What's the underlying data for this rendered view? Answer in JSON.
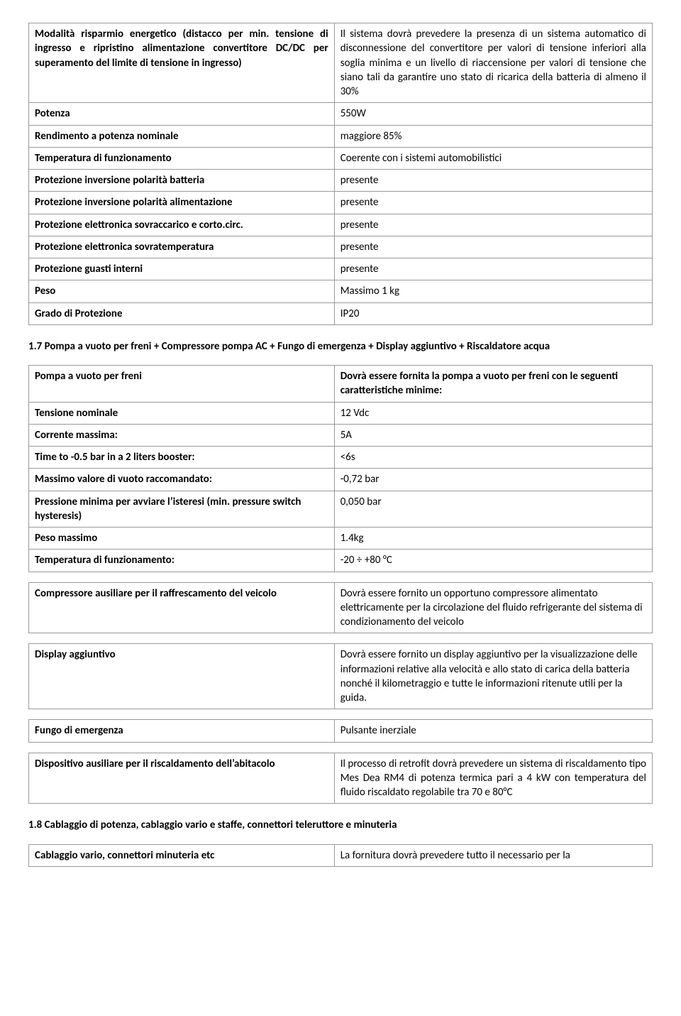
{
  "border_color": "#999999",
  "text_color": "#000000",
  "background_color": "#ffffff",
  "font_family": "Calibri",
  "font_size_pt": 11,
  "table1": {
    "rows": [
      {
        "l": "Modalità risparmio energetico (distacco per min. tensione di ingresso  e ripristino alimentazione convertitore DC/DC per superamento del limite di tensione in ingresso)",
        "r": "Il sistema dovrà prevedere la presenza di un sistema automatico di disconnessione del convertitore per valori di tensione inferiori alla soglia minima e un livello di riaccensione per valori di tensione che siano tali da garantire uno stato di ricarica della batteria di almeno il 30%",
        "l_bold": true,
        "l_justify": true,
        "r_justify": true
      },
      {
        "l": "Potenza",
        "r": "550W",
        "l_bold": true
      },
      {
        "l": "Rendimento a potenza nominale",
        "r": "maggiore 85%",
        "l_bold": true
      },
      {
        "l": "Temperatura di funzionamento",
        "r": "Coerente con i sistemi automobilistici",
        "l_bold": true
      },
      {
        "l": "Protezione inversione polarità batteria",
        "r": "presente",
        "l_bold": true
      },
      {
        "l": "Protezione inversione polarità alimentazione",
        "r": "presente",
        "l_bold": true
      },
      {
        "l": "Protezione elettronica sovraccarico e corto.circ.",
        "r": "presente",
        "l_bold": true
      },
      {
        "l": "Protezione elettronica sovratemperatura",
        "r": "presente",
        "l_bold": true
      },
      {
        "l": "Protezione guasti interni",
        "r": "presente",
        "l_bold": true
      },
      {
        "l": "Peso",
        "r": "Massimo 1 kg",
        "l_bold": true
      },
      {
        "l": "Grado di Protezione",
        "r": "IP20",
        "l_bold": true
      }
    ]
  },
  "section17_title": "1.7 Pompa a vuoto per freni + Compressore pompa AC + Fungo di emergenza + Display aggiuntivo + Riscaldatore acqua",
  "table2": {
    "rows": [
      {
        "l": "Pompa a vuoto per freni",
        "r": "Dovrà essere fornita la pompa a vuoto per freni con le seguenti caratteristiche minime:",
        "l_bold": true,
        "r_bold": true
      },
      {
        "l": " Tensione nominale",
        "r": "12 Vdc",
        "l_bold": true
      },
      {
        "l": "Corrente massima:",
        "r": "5A",
        "l_bold": true
      },
      {
        "l": "Time to -0.5 bar in a 2 liters booster:",
        "r": "<6s",
        "l_bold": true
      },
      {
        "l": "Massimo valore di vuoto raccomandato:",
        "r": "-0,72 bar",
        "l_bold": true
      },
      {
        "l": "Pressione minima per avviare l’isteresi (min. pressure switch hysteresis)",
        "r": "0,050 bar",
        "l_bold": true
      },
      {
        "l": "Peso massimo",
        "r": "1.4kg",
        "l_bold": true
      },
      {
        "l": "Temperatura di funzionamento:",
        "r": "-20 ÷ +80 °C",
        "l_bold": true
      }
    ]
  },
  "table3": {
    "rows": [
      {
        "l": "Compressore ausiliare per il raffrescamento del veicolo",
        "r": "Dovrà essere fornito un opportuno compressore alimentato elettricamente per la circolazione del fluido refrigerante del sistema di condizionamento del veicolo",
        "l_bold": true
      }
    ]
  },
  "table4": {
    "rows": [
      {
        "l": "Display aggiuntivo",
        "r": "Dovrà essere fornito un display aggiuntivo per la visualizzazione delle informazioni relative alla velocità e allo stato di carica della batteria nonché il kilometraggio e tutte le informazioni ritenute utili per la guida.",
        "l_bold": true
      }
    ]
  },
  "table5": {
    "rows": [
      {
        "l": "Fungo di emergenza",
        "r": "Pulsante inerziale",
        "l_bold": true
      }
    ]
  },
  "table6": {
    "rows": [
      {
        "l": "Dispositivo ausiliare per il riscaldamento dell’abitacolo",
        "r": "Il processo di retrofit dovrà prevedere un sistema di riscaldamento tipo Mes Dea RM4  di potenza termica pari a 4 kW con temperatura del fluido riscaldato regolabile tra 70 e 80°C",
        "l_bold": true,
        "r_justify": true
      }
    ]
  },
  "section18_title": "1.8 Cablaggio di potenza, cablaggio vario e staffe, connettori teleruttore e minuteria",
  "table7": {
    "rows": [
      {
        "l": "Cablaggio vario, connettori minuteria etc",
        "r": "La fornitura dovrà prevedere tutto il necessario per la",
        "l_bold": true,
        "r_justify": true
      }
    ]
  }
}
